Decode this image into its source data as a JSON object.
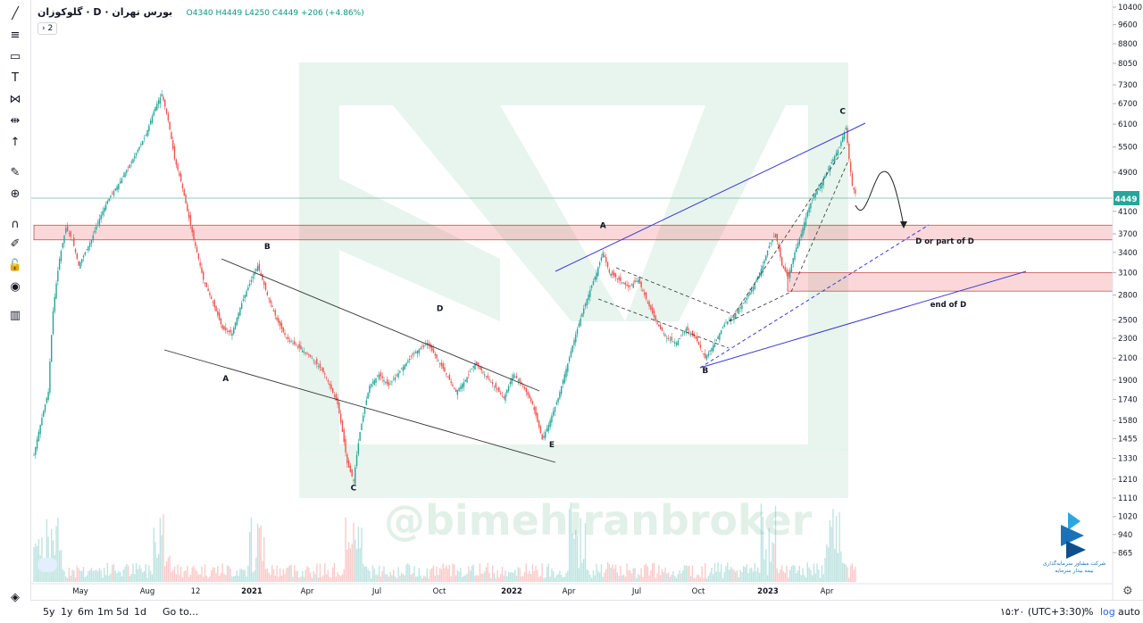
{
  "legend": {
    "symbol": "گلوکوزان",
    "interval": "D",
    "exchange": "بورس تهران",
    "open": "O4340",
    "high": "H4449",
    "low": "L4250",
    "close": "C4449",
    "change": "+206 (+4.86%)",
    "indicators_toggle": "› 2"
  },
  "watermark": "@bimehiranbroker",
  "brand_caption_1": "شرکت مشاور سرمایه‌گذاری",
  "brand_caption_2": "بیمه بیدار سرمایه",
  "bottom_bar": {
    "ranges": [
      "5y",
      "1y",
      "6m",
      "1m",
      "5d",
      "1d"
    ],
    "goto": "Go to...",
    "time": "۱۵:۲۰ (UTC+3:30)",
    "percent": "%",
    "log": "log",
    "auto": "auto"
  },
  "toolbar_icons": [
    "trend-line-icon",
    "fib-icon",
    "rectangle-icon",
    "text-icon",
    "pattern-icon",
    "prediction-icon",
    "arrow-icon",
    "ruler-icon",
    "zoom-icon",
    "magnet-icon",
    "lock-drawing-icon",
    "lock-icon",
    "eye-icon",
    "trash-icon",
    "layers-icon"
  ],
  "chart_data": {
    "type": "candlestick",
    "y_scale": "log",
    "ylim": [
      795,
      10400
    ],
    "y_ticks": [
      10400,
      9600,
      8800,
      8050,
      7300,
      6700,
      6100,
      5500,
      4900,
      4100,
      3700,
      3400,
      3100,
      2800,
      2500,
      2300,
      2100,
      1900,
      1740,
      1580,
      1455,
      1330,
      1210,
      1110,
      1020,
      940,
      865
    ],
    "x_labels": [
      "May",
      "Aug",
      "12",
      "2021",
      "Apr",
      "Jul",
      "Oct",
      "2022",
      "Apr",
      "Jul",
      "Oct",
      "2023",
      "Apr"
    ],
    "last_price": 4449,
    "price_path": [
      [
        0,
        1350
      ],
      [
        3,
        1500
      ],
      [
        6,
        1650
      ],
      [
        9,
        1800
      ],
      [
        12,
        2600
      ],
      [
        16,
        3300
      ],
      [
        20,
        3800
      ],
      [
        24,
        3600
      ],
      [
        28,
        3200
      ],
      [
        32,
        3400
      ],
      [
        36,
        3600
      ],
      [
        40,
        3900
      ],
      [
        46,
        4300
      ],
      [
        54,
        4700
      ],
      [
        62,
        5200
      ],
      [
        70,
        5800
      ],
      [
        76,
        6600
      ],
      [
        80,
        7000
      ],
      [
        84,
        6200
      ],
      [
        88,
        5200
      ],
      [
        92,
        4700
      ],
      [
        96,
        4100
      ],
      [
        100,
        3600
      ],
      [
        106,
        3000
      ],
      [
        112,
        2700
      ],
      [
        118,
        2400
      ],
      [
        124,
        2350
      ],
      [
        130,
        2700
      ],
      [
        136,
        3000
      ],
      [
        140,
        3200
      ],
      [
        146,
        2800
      ],
      [
        152,
        2500
      ],
      [
        158,
        2300
      ],
      [
        166,
        2200
      ],
      [
        174,
        2100
      ],
      [
        182,
        1950
      ],
      [
        190,
        1700
      ],
      [
        196,
        1300
      ],
      [
        200,
        1200
      ],
      [
        204,
        1500
      ],
      [
        210,
        1850
      ],
      [
        216,
        1950
      ],
      [
        222,
        1850
      ],
      [
        230,
        2000
      ],
      [
        238,
        2150
      ],
      [
        246,
        2250
      ],
      [
        252,
        2100
      ],
      [
        258,
        1950
      ],
      [
        264,
        1800
      ],
      [
        270,
        1900
      ],
      [
        276,
        2050
      ],
      [
        282,
        1950
      ],
      [
        288,
        1850
      ],
      [
        294,
        1750
      ],
      [
        300,
        1950
      ],
      [
        306,
        1850
      ],
      [
        312,
        1700
      ],
      [
        318,
        1450
      ],
      [
        322,
        1550
      ],
      [
        328,
        1750
      ],
      [
        334,
        2050
      ],
      [
        340,
        2400
      ],
      [
        346,
        2750
      ],
      [
        352,
        3100
      ],
      [
        356,
        3400
      ],
      [
        360,
        3100
      ],
      [
        366,
        3000
      ],
      [
        372,
        2900
      ],
      [
        378,
        3000
      ],
      [
        384,
        2700
      ],
      [
        390,
        2450
      ],
      [
        396,
        2300
      ],
      [
        402,
        2250
      ],
      [
        408,
        2400
      ],
      [
        414,
        2300
      ],
      [
        420,
        2100
      ],
      [
        426,
        2250
      ],
      [
        432,
        2450
      ],
      [
        438,
        2550
      ],
      [
        444,
        2700
      ],
      [
        450,
        2900
      ],
      [
        456,
        3200
      ],
      [
        460,
        3500
      ],
      [
        464,
        3700
      ],
      [
        468,
        3200
      ],
      [
        472,
        3050
      ],
      [
        476,
        3400
      ],
      [
        480,
        3700
      ],
      [
        484,
        4100
      ],
      [
        488,
        4400
      ],
      [
        492,
        4600
      ],
      [
        496,
        4900
      ],
      [
        500,
        5200
      ],
      [
        504,
        5500
      ],
      [
        508,
        6000
      ],
      [
        510,
        5200
      ],
      [
        512,
        4600
      ],
      [
        514,
        4449
      ]
    ],
    "volume_spikes": [
      0,
      12,
      80,
      140,
      200,
      340,
      460,
      500
    ],
    "annotations": [
      {
        "label": "A",
        "x": 120,
        "y": 1890
      },
      {
        "label": "B",
        "x": 146,
        "y": 3450
      },
      {
        "label": "C",
        "x": 200,
        "y": 1150
      },
      {
        "label": "D",
        "x": 254,
        "y": 2600
      },
      {
        "label": "E",
        "x": 324,
        "y": 1400
      },
      {
        "label": "A",
        "x": 356,
        "y": 3800
      },
      {
        "label": "B",
        "x": 420,
        "y": 1960
      },
      {
        "label": "C",
        "x": 506,
        "y": 6400
      }
    ],
    "zone_labels": [
      "D or part of D",
      "end of D"
    ],
    "zones": [
      [
        3600,
        3850
      ],
      [
        2850,
        3100
      ]
    ]
  }
}
